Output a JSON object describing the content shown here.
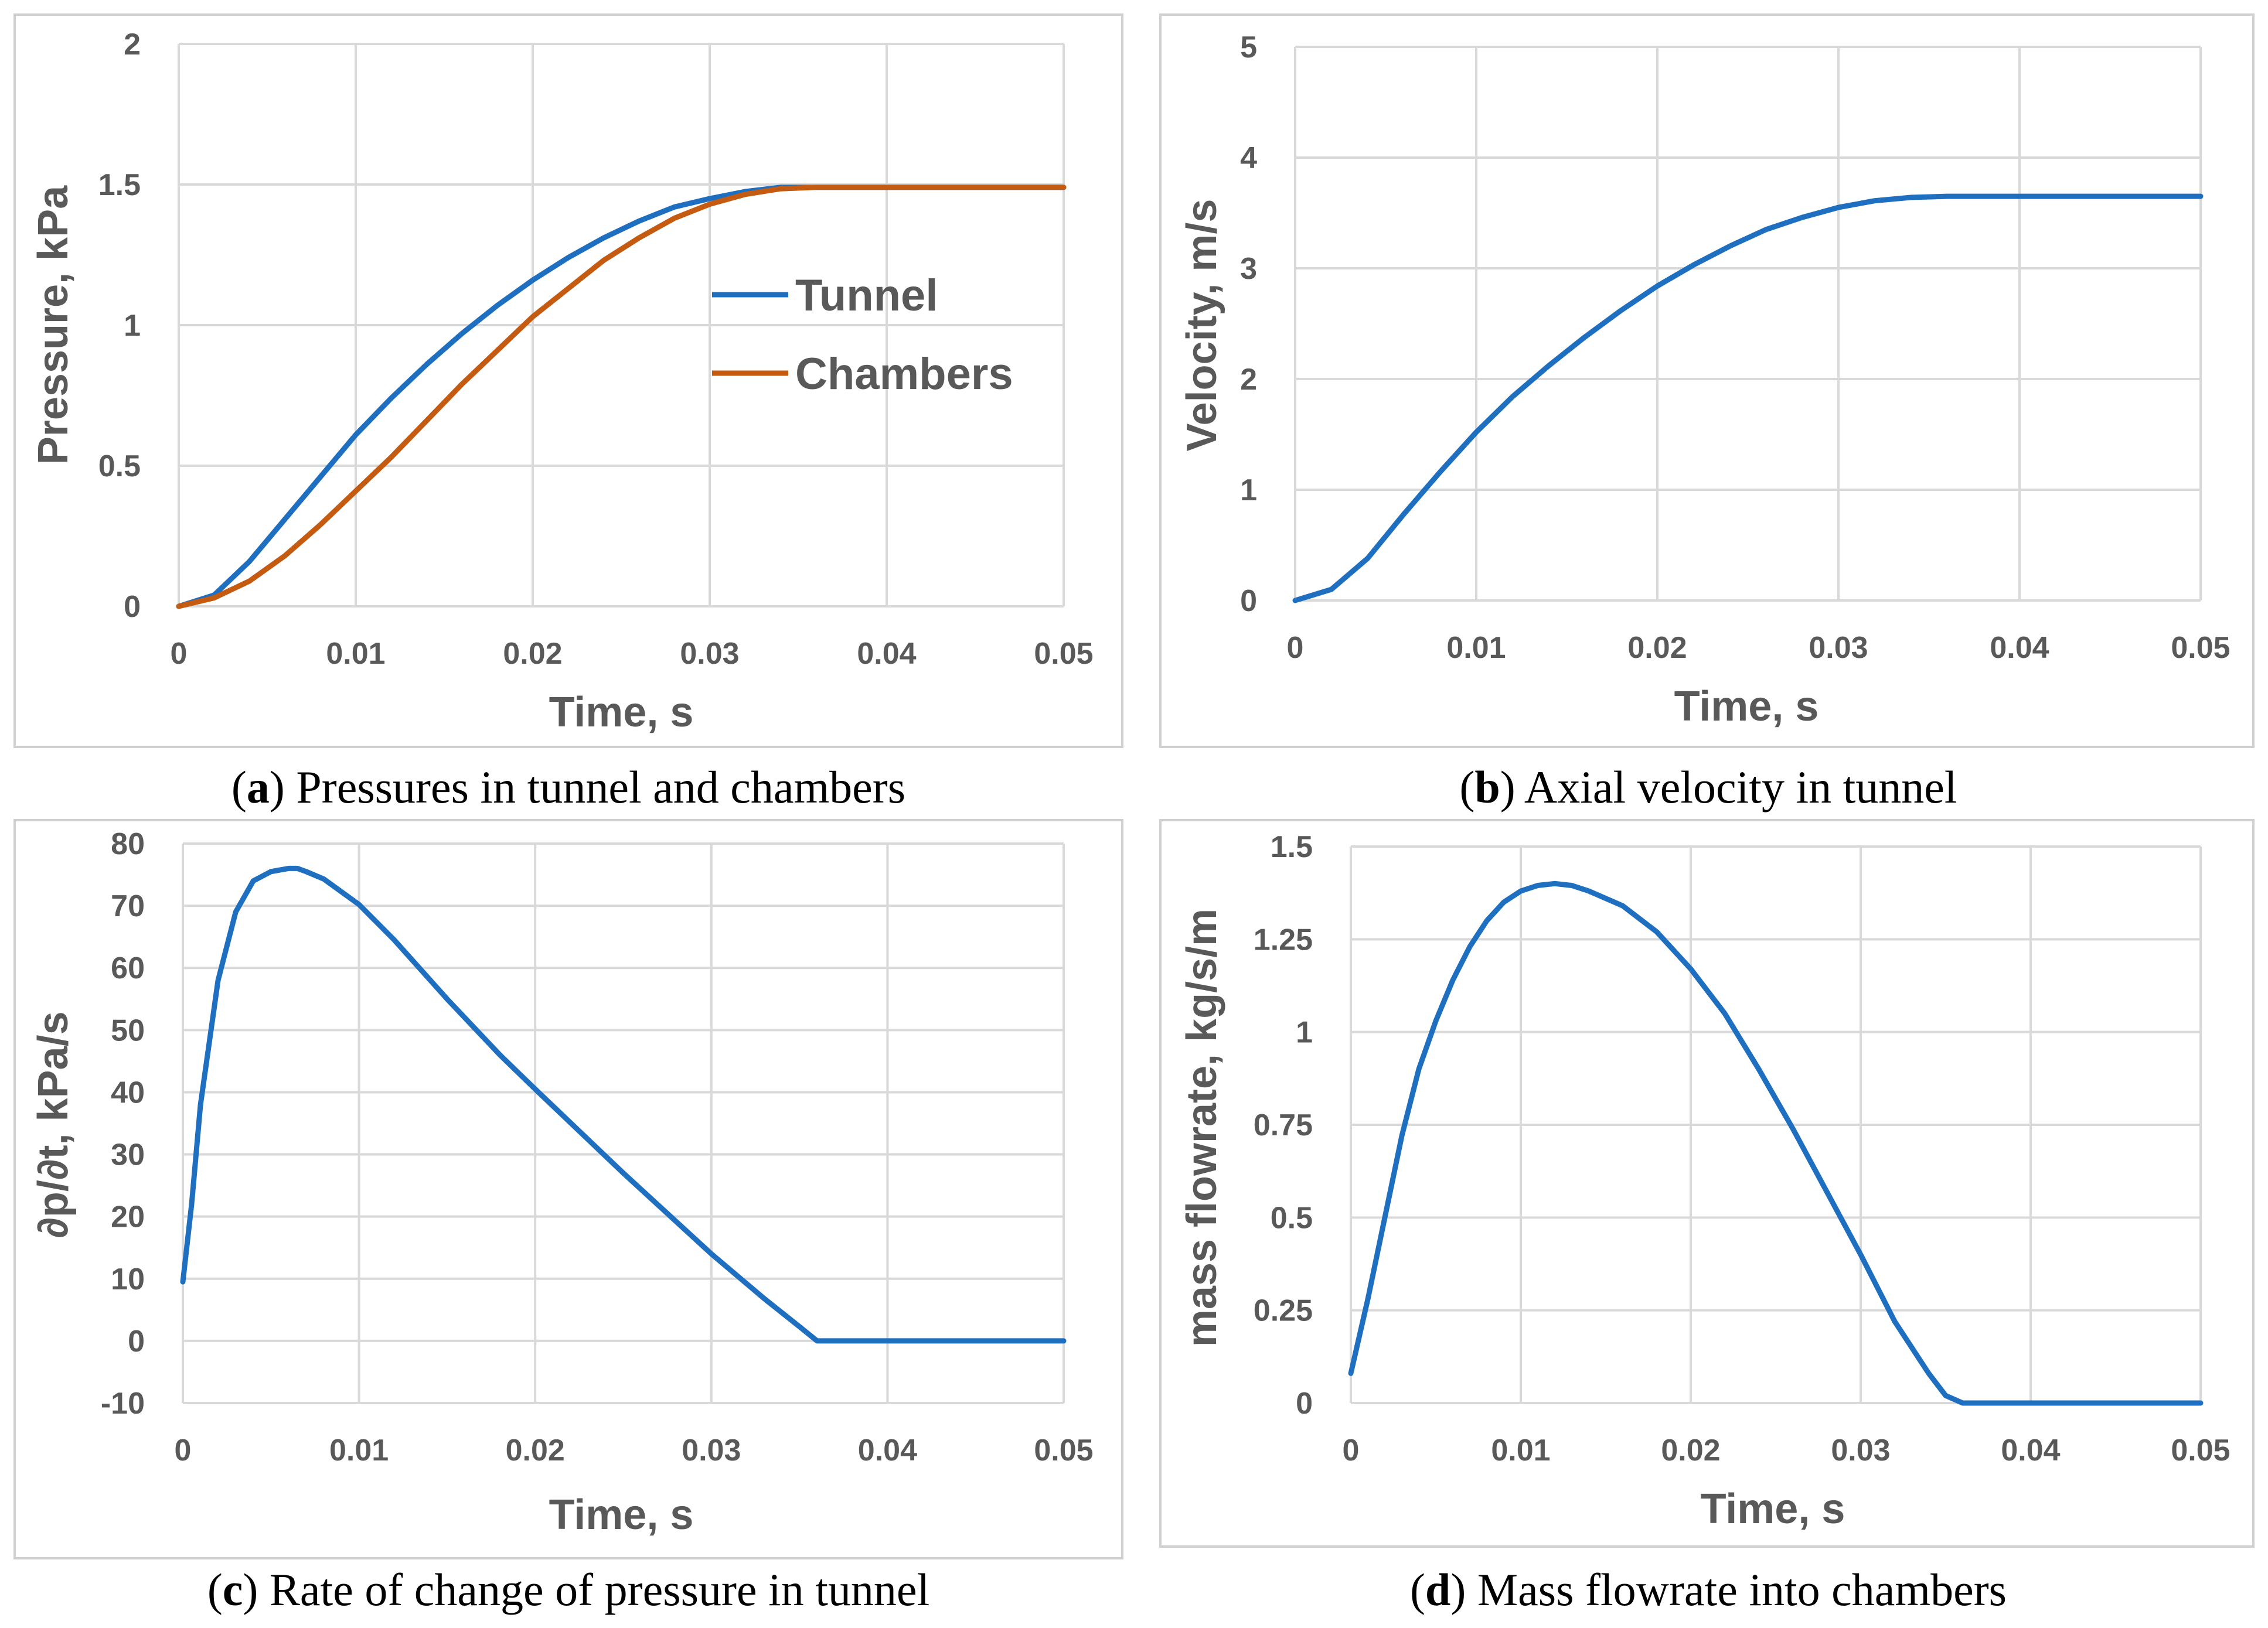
{
  "colors": {
    "tunnel": "#1f6fc0",
    "chambers": "#c55a11",
    "grid": "#d9d9d9",
    "text": "#595959"
  },
  "chart_data": [
    {
      "id": "a",
      "type": "line",
      "caption_letter": "a",
      "caption_text": ") Pressures in tunnel and chambers",
      "xlabel": "Time, s",
      "ylabel": "Pressure, kPa",
      "xlim": [
        0,
        0.05
      ],
      "ylim": [
        0,
        2
      ],
      "xticks": [
        "0",
        "0.01",
        "0.02",
        "0.03",
        "0.04",
        "0.05"
      ],
      "yticks": [
        "0",
        "0.5",
        "1",
        "1.5",
        "2"
      ],
      "legend_position": "center-right",
      "series": [
        {
          "name": "Tunnel",
          "color": "#1f6fc0",
          "x": [
            0,
            0.002,
            0.004,
            0.006,
            0.008,
            0.01,
            0.012,
            0.014,
            0.016,
            0.018,
            0.02,
            0.022,
            0.024,
            0.026,
            0.028,
            0.03,
            0.032,
            0.034,
            0.036,
            0.04,
            0.045,
            0.05
          ],
          "y": [
            0,
            0.04,
            0.16,
            0.31,
            0.46,
            0.61,
            0.74,
            0.86,
            0.97,
            1.07,
            1.16,
            1.24,
            1.31,
            1.37,
            1.42,
            1.45,
            1.475,
            1.49,
            1.49,
            1.49,
            1.49,
            1.49
          ]
        },
        {
          "name": "Chambers",
          "color": "#c55a11",
          "x": [
            0,
            0.002,
            0.004,
            0.006,
            0.008,
            0.01,
            0.012,
            0.014,
            0.016,
            0.018,
            0.02,
            0.022,
            0.024,
            0.026,
            0.028,
            0.03,
            0.032,
            0.034,
            0.036,
            0.04,
            0.045,
            0.05
          ],
          "y": [
            0,
            0.03,
            0.09,
            0.18,
            0.29,
            0.41,
            0.53,
            0.66,
            0.79,
            0.91,
            1.03,
            1.13,
            1.23,
            1.31,
            1.38,
            1.43,
            1.465,
            1.485,
            1.49,
            1.49,
            1.49,
            1.49
          ]
        }
      ]
    },
    {
      "id": "b",
      "type": "line",
      "caption_letter": "b",
      "caption_text": ") Axial velocity in tunnel",
      "xlabel": "Time, s",
      "ylabel": "Velocity, m/s",
      "xlim": [
        0,
        0.05
      ],
      "ylim": [
        0,
        5
      ],
      "xticks": [
        "0",
        "0.01",
        "0.02",
        "0.03",
        "0.04",
        "0.05"
      ],
      "yticks": [
        "0",
        "1",
        "2",
        "3",
        "4",
        "5"
      ],
      "series": [
        {
          "name": "Velocity",
          "color": "#1f6fc0",
          "x": [
            0,
            0.002,
            0.004,
            0.006,
            0.008,
            0.01,
            0.012,
            0.014,
            0.016,
            0.018,
            0.02,
            0.022,
            0.024,
            0.026,
            0.028,
            0.03,
            0.032,
            0.034,
            0.036,
            0.04,
            0.045,
            0.05
          ],
          "y": [
            0,
            0.1,
            0.38,
            0.78,
            1.16,
            1.52,
            1.84,
            2.12,
            2.38,
            2.62,
            2.84,
            3.03,
            3.2,
            3.35,
            3.46,
            3.55,
            3.61,
            3.64,
            3.65,
            3.65,
            3.65,
            3.65
          ]
        }
      ]
    },
    {
      "id": "c",
      "type": "line",
      "caption_letter": "c",
      "caption_text": ") Rate of change of pressure in tunnel",
      "xlabel": "Time, s",
      "ylabel": "∂p/∂t, kPa/s",
      "xlim": [
        0,
        0.05
      ],
      "ylim": [
        -10,
        80
      ],
      "xticks": [
        "0",
        "0.01",
        "0.02",
        "0.03",
        "0.04",
        "0.05"
      ],
      "yticks": [
        "-10",
        "0",
        "10",
        "20",
        "30",
        "40",
        "50",
        "60",
        "70",
        "80"
      ],
      "series": [
        {
          "name": "dp/dt",
          "color": "#1f6fc0",
          "x": [
            0,
            0.0005,
            0.001,
            0.002,
            0.003,
            0.004,
            0.005,
            0.006,
            0.0065,
            0.007,
            0.008,
            0.01,
            0.012,
            0.015,
            0.018,
            0.02,
            0.025,
            0.03,
            0.033,
            0.035,
            0.036,
            0.04,
            0.045,
            0.05
          ],
          "y": [
            9.5,
            22,
            38,
            58,
            69,
            74,
            75.5,
            76,
            76,
            75.5,
            74.3,
            70.2,
            64.5,
            55,
            46,
            40.5,
            27,
            14,
            6.8,
            2.3,
            0,
            0,
            0,
            0
          ]
        }
      ]
    },
    {
      "id": "d",
      "type": "line",
      "caption_letter": "d",
      "caption_text": ") Mass flowrate into chambers",
      "xlabel": "Time, s",
      "ylabel": "mass flowrate, kg/s/m",
      "xlim": [
        0,
        0.05
      ],
      "ylim": [
        0,
        1.5
      ],
      "xticks": [
        "0",
        "0.01",
        "0.02",
        "0.03",
        "0.04",
        "0.05"
      ],
      "yticks": [
        "0",
        "0.25",
        "0.5",
        "0.75",
        "1",
        "1.25",
        "1.5"
      ],
      "series": [
        {
          "name": "Mass flowrate",
          "color": "#1f6fc0",
          "x": [
            0,
            0.001,
            0.002,
            0.003,
            0.004,
            0.005,
            0.006,
            0.007,
            0.008,
            0.009,
            0.01,
            0.011,
            0.012,
            0.013,
            0.014,
            0.016,
            0.018,
            0.02,
            0.022,
            0.024,
            0.026,
            0.028,
            0.03,
            0.032,
            0.034,
            0.035,
            0.036,
            0.04,
            0.045,
            0.05
          ],
          "y": [
            0.08,
            0.28,
            0.5,
            0.72,
            0.9,
            1.03,
            1.14,
            1.23,
            1.3,
            1.35,
            1.38,
            1.395,
            1.4,
            1.395,
            1.38,
            1.34,
            1.27,
            1.17,
            1.05,
            0.9,
            0.74,
            0.57,
            0.4,
            0.22,
            0.08,
            0.02,
            0,
            0,
            0,
            0
          ]
        }
      ]
    }
  ]
}
